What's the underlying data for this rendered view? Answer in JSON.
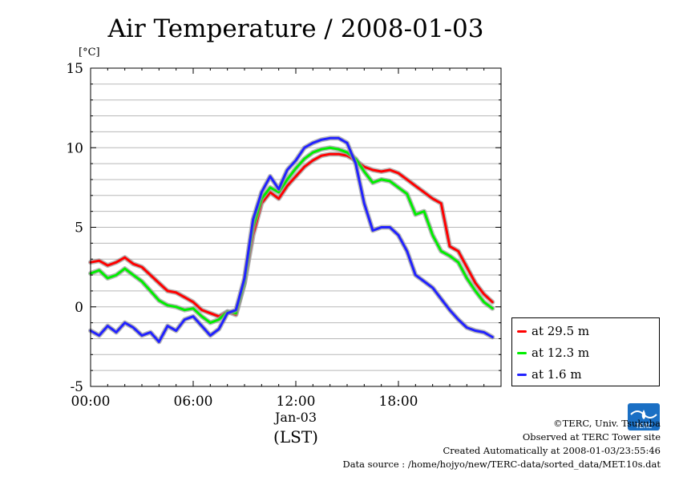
{
  "chart_data": {
    "type": "line",
    "title": "Air Temperature / 2008-01-03",
    "ylabel": "[°C]",
    "xlabel": "(LST)",
    "x_sublabel": "Jan-03",
    "ylim": [
      -5,
      15
    ],
    "xlim": [
      0,
      24
    ],
    "yticks": [
      -5,
      0,
      5,
      10,
      15
    ],
    "xticks": [
      {
        "value": 0,
        "label": "00:00"
      },
      {
        "value": 6,
        "label": "06:00"
      },
      {
        "value": 12,
        "label": "12:00"
      },
      {
        "value": 18,
        "label": "18:00"
      }
    ],
    "grid": "horizontal",
    "legend_position": "bottom-right-outside",
    "x": [
      0,
      0.5,
      1,
      1.5,
      2,
      2.5,
      3,
      3.5,
      4,
      4.5,
      5,
      5.5,
      6,
      6.5,
      7,
      7.5,
      8,
      8.5,
      9,
      9.5,
      10,
      10.5,
      11,
      11.5,
      12,
      12.5,
      13,
      13.5,
      14,
      14.5,
      15,
      15.5,
      16,
      16.5,
      17,
      17.5,
      18,
      18.5,
      19,
      19.5,
      20,
      20.5,
      21,
      21.5,
      22,
      22.5,
      23,
      23.5
    ],
    "series": [
      {
        "name": "at 29.5 m",
        "color": "#ff0000",
        "values": [
          2.8,
          2.9,
          2.6,
          2.8,
          3.1,
          2.7,
          2.5,
          2.0,
          1.5,
          1.0,
          0.9,
          0.6,
          0.3,
          -0.2,
          -0.4,
          -0.6,
          -0.3,
          -0.5,
          1.5,
          4.5,
          6.5,
          7.2,
          6.8,
          7.6,
          8.2,
          8.8,
          9.2,
          9.5,
          9.6,
          9.6,
          9.5,
          9.2,
          8.8,
          8.6,
          8.5,
          8.6,
          8.4,
          8.0,
          7.6,
          7.2,
          6.8,
          6.5,
          3.8,
          3.5,
          2.5,
          1.5,
          0.8,
          0.3
        ]
      },
      {
        "name": "at 12.3 m",
        "color": "#00ee00",
        "values": [
          2.1,
          2.3,
          1.8,
          2.0,
          2.4,
          2.0,
          1.6,
          1.0,
          0.4,
          0.1,
          0.0,
          -0.2,
          -0.1,
          -0.6,
          -1.0,
          -0.8,
          -0.3,
          -0.4,
          1.5,
          5.0,
          6.8,
          7.5,
          7.2,
          8.0,
          8.7,
          9.3,
          9.7,
          9.9,
          10.0,
          9.9,
          9.7,
          9.3,
          8.5,
          7.8,
          8.0,
          7.9,
          7.5,
          7.1,
          5.8,
          6.0,
          4.5,
          3.5,
          3.2,
          2.8,
          1.8,
          1.0,
          0.3,
          -0.1
        ]
      },
      {
        "name": "at 1.6 m",
        "color": "#2222ff",
        "values": [
          -1.5,
          -1.8,
          -1.2,
          -1.6,
          -1.0,
          -1.3,
          -1.8,
          -1.6,
          -2.2,
          -1.2,
          -1.5,
          -0.8,
          -0.6,
          -1.2,
          -1.8,
          -1.4,
          -0.4,
          -0.2,
          1.8,
          5.5,
          7.2,
          8.2,
          7.4,
          8.6,
          9.2,
          10.0,
          10.3,
          10.5,
          10.6,
          10.6,
          10.3,
          9.0,
          6.5,
          4.8,
          5.0,
          5.0,
          4.5,
          3.5,
          2.0,
          1.6,
          1.2,
          0.5,
          -0.2,
          -0.8,
          -1.3,
          -1.5,
          -1.6,
          -1.9
        ]
      }
    ]
  },
  "footer": {
    "credit": "©TERC, Univ. Tsukuba",
    "site": "Observed at TERC Tower site",
    "created": "Created Automatically at 2008-01-03/23:55:46",
    "source": "Data source : /home/hojyo/new/TERC-data/sorted_data/MET.10s.dat"
  },
  "logo": {
    "text": "TERC",
    "color": "#1a6fc4"
  }
}
